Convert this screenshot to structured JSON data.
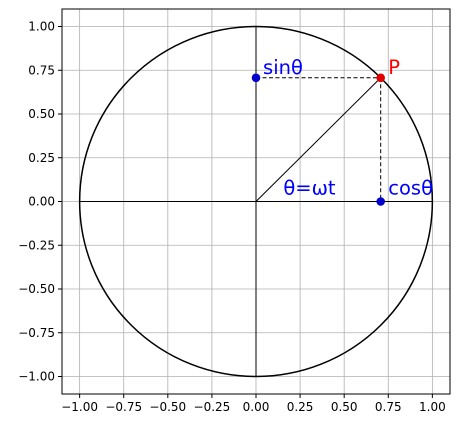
{
  "chart_data": {
    "type": "scatter",
    "title": "",
    "xlabel": "",
    "ylabel": "",
    "xlim": [
      -1.1,
      1.1
    ],
    "ylim": [
      -1.1,
      1.1
    ],
    "grid": true,
    "aspect": "equal",
    "xticks": [
      -1.0,
      -0.75,
      -0.5,
      -0.25,
      0.0,
      0.25,
      0.5,
      0.75,
      1.0
    ],
    "xtick_labels": [
      "−1.00",
      "−0.75",
      "−0.50",
      "−0.25",
      "0.00",
      "0.25",
      "0.50",
      "0.75",
      "1.00"
    ],
    "yticks": [
      1.0,
      0.75,
      0.5,
      0.25,
      0.0,
      -0.25,
      -0.5,
      -0.75,
      -1.0
    ],
    "ytick_labels": [
      "1.00",
      "0.75",
      "0.50",
      "0.25",
      "0.00",
      "−0.25",
      "−0.50",
      "−0.75",
      "−1.00"
    ],
    "circle": {
      "center": [
        0,
        0
      ],
      "radius": 1.0,
      "color": "#000000"
    },
    "axes_lines": [
      {
        "from": [
          -1.0,
          0.0
        ],
        "to": [
          1.0,
          0.0
        ]
      },
      {
        "from": [
          0.0,
          -1.0
        ],
        "to": [
          0.0,
          1.0
        ]
      }
    ],
    "radius_line": {
      "from": [
        0.0,
        0.0
      ],
      "to": [
        0.707,
        0.707
      ]
    },
    "dashed_lines": [
      {
        "from": [
          0.0,
          0.707
        ],
        "to": [
          0.707,
          0.707
        ]
      },
      {
        "from": [
          0.707,
          0.707
        ],
        "to": [
          0.707,
          0.0
        ]
      }
    ],
    "points": [
      {
        "x": 0.707,
        "y": 0.707,
        "color": "#e00000"
      },
      {
        "x": 0.0,
        "y": 0.707,
        "color": "#0000cc"
      },
      {
        "x": 0.707,
        "y": 0.0,
        "color": "#0000cc"
      }
    ],
    "annotations": [
      {
        "text": "P",
        "x": 0.75,
        "y": 0.73,
        "color": "#ff0000"
      },
      {
        "text": "sinθ",
        "x": 0.04,
        "y": 0.73,
        "color": "#0000ff"
      },
      {
        "text": "θ=ωt",
        "x": 0.155,
        "y": 0.04,
        "color": "#0000ff"
      },
      {
        "text": "cosθ",
        "x": 0.75,
        "y": 0.04,
        "color": "#0000ff"
      }
    ]
  }
}
